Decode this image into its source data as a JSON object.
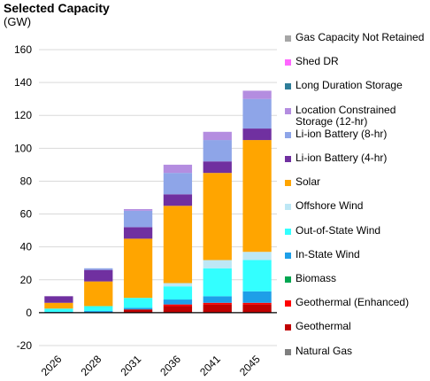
{
  "chart_data": {
    "type": "bar",
    "stacked": true,
    "title": "Selected Capacity",
    "subtitle": "(GW)",
    "ylim": [
      -20,
      160
    ],
    "yticks": [
      -20,
      0,
      20,
      40,
      60,
      80,
      100,
      120,
      140,
      160
    ],
    "grid": true,
    "legend_position": "right",
    "categories": [
      "2026",
      "2028",
      "2031",
      "2036",
      "2041",
      "2045"
    ],
    "series": [
      {
        "name": "Natural Gas",
        "color": "#7f7f7f",
        "values": [
          0,
          0,
          0,
          0,
          0,
          0
        ]
      },
      {
        "name": "Geothermal",
        "color": "#c00000",
        "values": [
          0,
          0,
          2,
          4,
          5,
          5
        ]
      },
      {
        "name": "Geothermal (Enhanced)",
        "color": "#ff0000",
        "values": [
          0,
          0,
          0,
          1,
          1,
          1
        ]
      },
      {
        "name": "Biomass",
        "color": "#00a651",
        "values": [
          0,
          0,
          0,
          0,
          0,
          0
        ]
      },
      {
        "name": "In-State Wind",
        "color": "#1e9fe8",
        "values": [
          0.5,
          1,
          1,
          3,
          4,
          7
        ]
      },
      {
        "name": "Out-of-State Wind",
        "color": "#33ffff",
        "values": [
          2,
          3,
          6,
          8,
          17,
          19
        ]
      },
      {
        "name": "Offshore Wind",
        "color": "#bde7f5",
        "values": [
          0,
          0,
          0,
          2,
          5,
          5
        ]
      },
      {
        "name": "Solar",
        "color": "#ffa500",
        "values": [
          3.5,
          15,
          36,
          47,
          53,
          68
        ]
      },
      {
        "name": "Li-ion Battery (4-hr)",
        "color": "#7030a0",
        "values": [
          4,
          7,
          7,
          7,
          7,
          7
        ]
      },
      {
        "name": "Li-ion Battery (8-hr)",
        "color": "#8ea5e8",
        "values": [
          0,
          1,
          10,
          13,
          13,
          18
        ]
      },
      {
        "name": "Location Constrained Storage (12-hr)",
        "color": "#b48de0",
        "values": [
          0,
          0,
          1,
          5,
          5,
          5
        ]
      },
      {
        "name": "Long Duration Storage",
        "color": "#2e7d99",
        "values": [
          0,
          0,
          0,
          0,
          0,
          0
        ]
      },
      {
        "name": "Shed DR",
        "color": "#ff66ff",
        "values": [
          0,
          0,
          0,
          0,
          0,
          0
        ]
      },
      {
        "name": "Gas Capacity Not Retained",
        "color": "#a6a6a6",
        "values": [
          0,
          0,
          0,
          0,
          0,
          0
        ]
      }
    ],
    "legend_order": [
      "Gas Capacity Not Retained",
      "Shed DR",
      "Long Duration Storage",
      "Location Constrained Storage (12-hr)",
      "Li-ion Battery (8-hr)",
      "Li-ion Battery (4-hr)",
      "Solar",
      "Offshore Wind",
      "Out-of-State Wind",
      "In-State Wind",
      "Biomass",
      "Geothermal (Enhanced)",
      "Geothermal",
      "Natural Gas"
    ]
  }
}
